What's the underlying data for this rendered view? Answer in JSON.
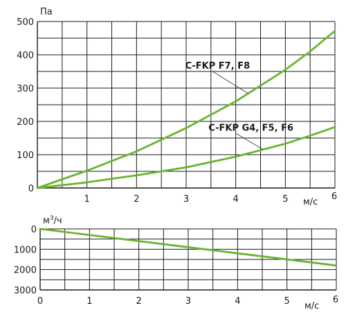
{
  "chart_data": [
    {
      "type": "line",
      "x_unit": "м/с",
      "y_unit": "Па",
      "xlim": [
        0,
        6
      ],
      "ylim": [
        0,
        500
      ],
      "x_ticks": [
        "1",
        "2",
        "3",
        "4",
        "5",
        "6"
      ],
      "y_ticks": [
        "0",
        "100",
        "200",
        "300",
        "400",
        "500"
      ],
      "grid": true,
      "series": [
        {
          "name": "C-FKP F7, F8",
          "x": [
            0,
            1,
            2,
            3,
            4,
            5,
            5.5,
            6
          ],
          "y": [
            0,
            52,
            110,
            180,
            260,
            355,
            410,
            472
          ]
        },
        {
          "name": "C-FKP G4, F5, F6",
          "x": [
            0,
            1,
            2,
            3,
            4,
            5,
            5.5,
            6
          ],
          "y": [
            0,
            17,
            38,
            62,
            94,
            133,
            157,
            183
          ]
        }
      ],
      "annotations": [
        {
          "text": "C-FKP F7, F8",
          "series": 0,
          "x_at": 4.25,
          "label_x": 2.98,
          "label_y": 358
        },
        {
          "text": "C-FKP G4, F5, F6",
          "series": 1,
          "x_at": 4.55,
          "label_x": 3.45,
          "label_y": 172
        }
      ],
      "colors": {
        "line": "#6ab42d",
        "grid": "#1a1a1a",
        "text": "#1a1a1a"
      }
    },
    {
      "type": "line",
      "x_unit": "м/с",
      "y_unit_base": "м",
      "y_unit_exp": "3",
      "y_unit_tail": "/ч",
      "xlim": [
        0,
        6
      ],
      "ylim": [
        0,
        3000
      ],
      "y_inverted": true,
      "x_ticks": [
        "0",
        "1",
        "2",
        "3",
        "4",
        "5",
        "6"
      ],
      "y_ticks": [
        "0",
        "1000",
        "2000",
        "3000"
      ],
      "grid": true,
      "series": [
        {
          "x": [
            0,
            6
          ],
          "y": [
            0,
            1800
          ]
        }
      ],
      "colors": {
        "line": "#6ab42d",
        "grid": "#1a1a1a",
        "text": "#1a1a1a"
      }
    }
  ]
}
